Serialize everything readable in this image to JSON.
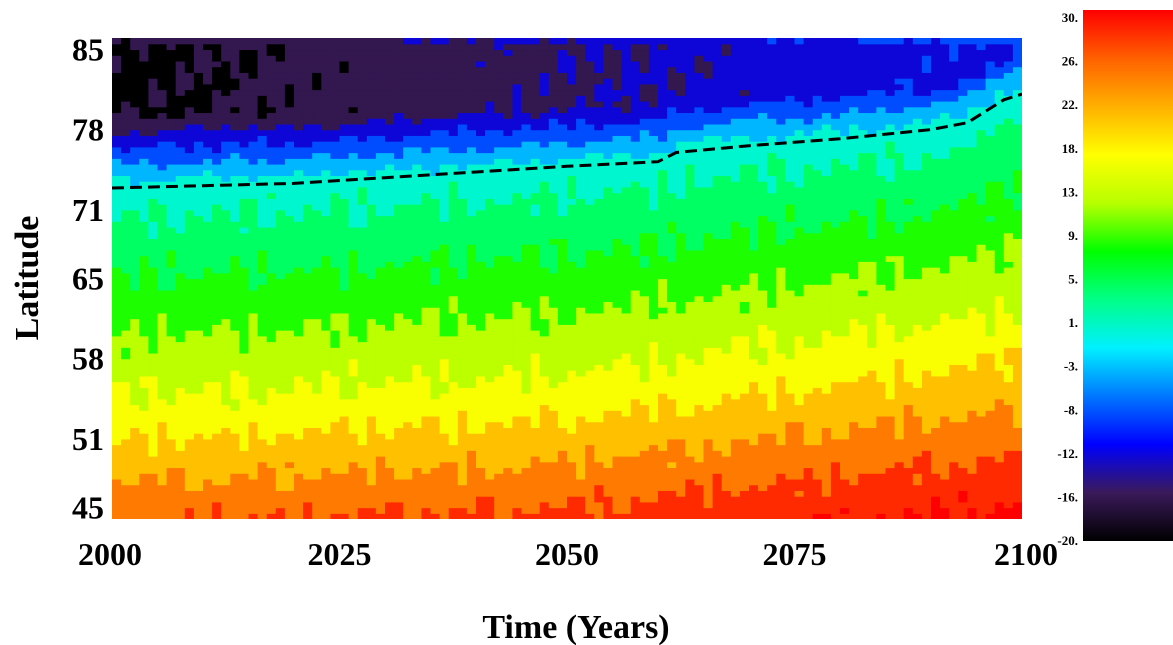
{
  "chart_data": {
    "type": "heatmap",
    "title": "",
    "xlabel": "Time (Years)",
    "ylabel": "Latitude",
    "xlim": [
      2000,
      2100
    ],
    "ylim": [
      44,
      86
    ],
    "x_ticks": [
      "2000",
      "2025",
      "2050",
      "2075",
      "2100"
    ],
    "y_ticks": [
      "85",
      "78",
      "71",
      "65",
      "58",
      "51",
      "45"
    ],
    "y_tick_values": [
      85,
      78,
      71,
      65,
      58,
      51,
      45
    ],
    "colorbar": {
      "min": -20,
      "max": 30,
      "tick_labels": [
        "30.",
        "26.",
        "22.",
        "18.",
        "13.",
        "9.",
        "5.",
        "1.",
        "-3.",
        "-8.",
        "-12.",
        "-16.",
        "-20."
      ],
      "tick_values": [
        30,
        26,
        22,
        18,
        13,
        9,
        5,
        1,
        -3,
        -8,
        -12,
        -16,
        -20
      ],
      "colors": [
        "#000000",
        "#3a1a5a",
        "#0000ff",
        "#0077ff",
        "#00f0ff",
        "#00ff88",
        "#00ff00",
        "#b8ff00",
        "#ffff00",
        "#ffb000",
        "#ff6000",
        "#ff0000"
      ]
    },
    "grid": false,
    "zero_contour": {
      "style": "dashed",
      "years": [
        2000,
        2010,
        2020,
        2030,
        2040,
        2050,
        2060,
        2062,
        2070,
        2080,
        2090,
        2094,
        2098,
        2100
      ],
      "latitude": [
        72.9,
        73.1,
        73.3,
        73.8,
        74.3,
        74.8,
        75.2,
        76.0,
        76.6,
        77.2,
        78.0,
        78.6,
        80.6,
        81.1
      ]
    },
    "field_description_anchors": {
      "year": [
        2000,
        2050,
        2100
      ],
      "lat_at_temp_15": [
        53.5,
        55.5,
        61.0
      ],
      "lat_at_temp_25": [
        44.5,
        46.0,
        50.5
      ]
    }
  }
}
